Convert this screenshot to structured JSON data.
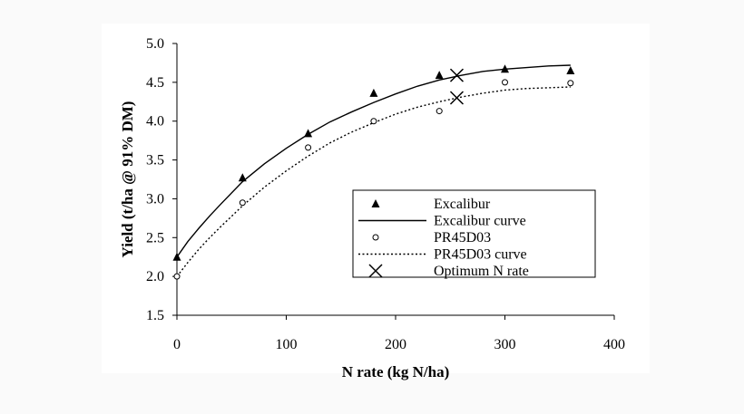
{
  "chart_data": {
    "type": "scatter",
    "xlabel": "N rate (kg N/ha)",
    "ylabel": "Yield (t/ha @ 91% DM)",
    "xlim": [
      0,
      400
    ],
    "ylim": [
      1.5,
      5.0
    ],
    "xticks": [
      "0",
      "100",
      "200",
      "300",
      "400"
    ],
    "yticks": [
      "1.5",
      "2.0",
      "2.5",
      "3.0",
      "3.5",
      "4.0",
      "4.5",
      "5.0"
    ],
    "grid": false,
    "legend_position": "center-right",
    "series": [
      {
        "name": "Excalibur",
        "kind": "points",
        "marker": "triangle",
        "x": [
          0,
          60,
          120,
          180,
          240,
          300,
          360
        ],
        "y": [
          2.25,
          3.27,
          3.84,
          4.36,
          4.59,
          4.67,
          4.65
        ]
      },
      {
        "name": "Excalibur curve",
        "kind": "line",
        "style": "solid",
        "x": [
          0,
          10,
          20,
          30,
          40,
          60,
          80,
          100,
          120,
          140,
          160,
          180,
          200,
          220,
          240,
          260,
          280,
          300,
          320,
          340,
          360
        ],
        "y": [
          2.25,
          2.45,
          2.62,
          2.78,
          2.93,
          3.22,
          3.45,
          3.65,
          3.83,
          3.99,
          4.12,
          4.24,
          4.35,
          4.45,
          4.53,
          4.59,
          4.64,
          4.67,
          4.69,
          4.71,
          4.72
        ]
      },
      {
        "name": "PR45D03",
        "kind": "points",
        "marker": "circle",
        "x": [
          0,
          60,
          120,
          180,
          240,
          300,
          360
        ],
        "y": [
          2.0,
          2.95,
          3.66,
          4.0,
          4.13,
          4.5,
          4.49
        ]
      },
      {
        "name": "PR45D03 curve",
        "kind": "line",
        "style": "dotted",
        "x": [
          0,
          10,
          20,
          30,
          40,
          60,
          80,
          100,
          120,
          140,
          160,
          180,
          200,
          220,
          240,
          260,
          280,
          300,
          320,
          340,
          360
        ],
        "y": [
          2.0,
          2.18,
          2.35,
          2.5,
          2.64,
          2.91,
          3.15,
          3.36,
          3.55,
          3.72,
          3.86,
          3.98,
          4.09,
          4.18,
          4.25,
          4.31,
          4.36,
          4.4,
          4.42,
          4.43,
          4.44
        ]
      },
      {
        "name": "Optimum N rate",
        "kind": "points",
        "marker": "x",
        "x": [
          256,
          256
        ],
        "y": [
          4.59,
          4.3
        ]
      }
    ]
  }
}
